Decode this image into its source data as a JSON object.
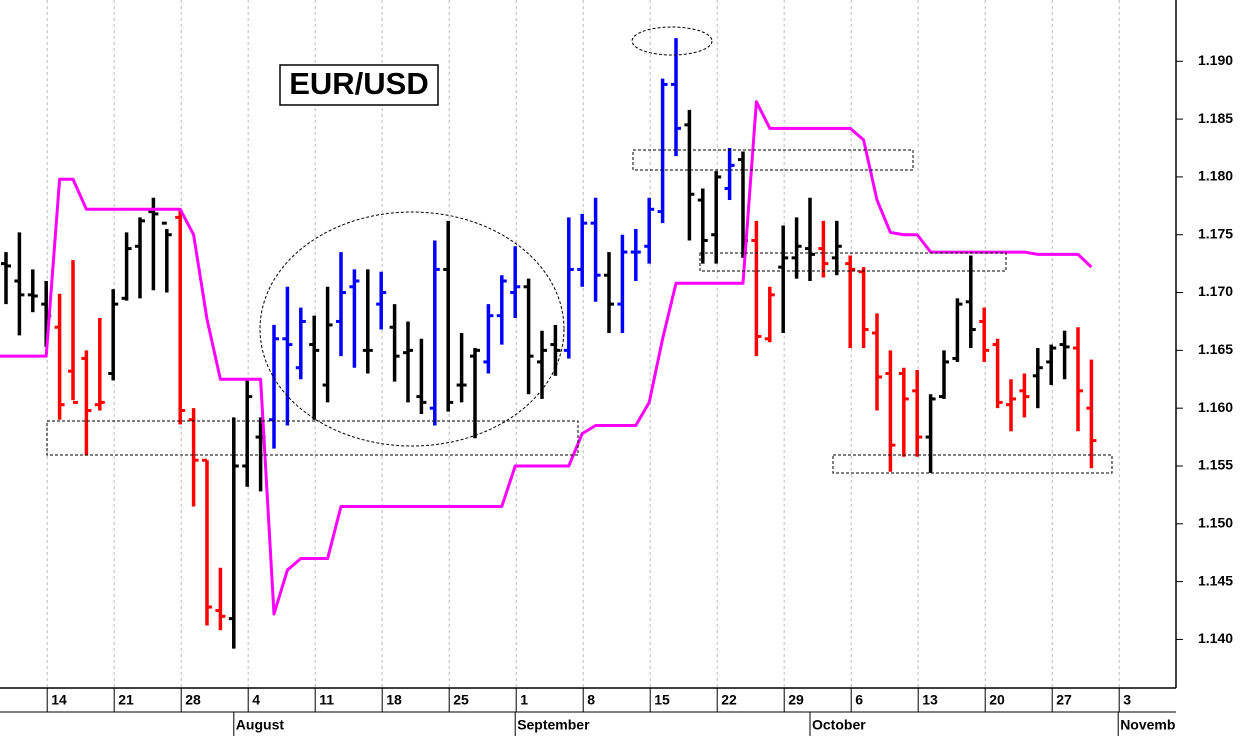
{
  "chart_data": {
    "type": "ohlc",
    "title": "EUR/USD",
    "categories": [
      null,
      null,
      null,
      "14",
      null,
      null,
      null,
      null,
      "21",
      null,
      null,
      null,
      null,
      "28",
      null,
      null,
      null,
      null,
      "4",
      null,
      null,
      null,
      null,
      "11",
      null,
      null,
      null,
      null,
      "18",
      null,
      null,
      null,
      null,
      "25",
      null,
      null,
      null,
      null,
      "1",
      null,
      null,
      null,
      null,
      "8",
      null,
      null,
      null,
      null,
      "15",
      null,
      null,
      null,
      null,
      "22",
      null,
      null,
      null,
      null,
      "29",
      null,
      null,
      null,
      null,
      "6",
      null,
      null,
      null,
      null,
      "13",
      null,
      null,
      null,
      null,
      "20",
      null,
      null,
      null,
      null,
      "27",
      null,
      null,
      null,
      null,
      "3"
    ],
    "month_labels": [
      null,
      null,
      null,
      null,
      null,
      null,
      null,
      null,
      null,
      null,
      null,
      null,
      null,
      null,
      null,
      null,
      null,
      "August",
      null,
      null,
      null,
      null,
      null,
      null,
      null,
      null,
      null,
      null,
      null,
      null,
      null,
      null,
      null,
      null,
      null,
      null,
      null,
      null,
      "September",
      null,
      null,
      null,
      null,
      null,
      null,
      null,
      null,
      null,
      null,
      null,
      null,
      null,
      null,
      null,
      null,
      null,
      null,
      null,
      null,
      null,
      "October",
      null,
      null,
      null,
      null,
      null,
      null,
      null,
      null,
      null,
      null,
      null,
      null,
      null,
      null,
      null,
      null,
      null,
      null,
      null,
      null,
      null,
      null,
      "November"
    ],
    "series": [
      {
        "open": [
          1.1725,
          1.171,
          1.1698,
          1.169,
          1.167,
          1.1632,
          1.1643,
          1.1603,
          1.163,
          1.1695,
          1.174,
          1.177,
          1.176,
          1.1765,
          1.159,
          1.1555,
          1.1425,
          1.1418,
          1.155,
          1.1575,
          1.159,
          1.166,
          1.1635,
          1.1655,
          1.162,
          1.1675,
          1.1705,
          1.165,
          1.169,
          1.167,
          1.1648,
          1.161,
          1.16,
          1.172,
          1.162,
          1.1645,
          1.164,
          1.168,
          1.17,
          1.1705,
          1.164,
          1.1655,
          1.165,
          1.172,
          1.176,
          1.1715,
          1.169,
          1.1735,
          1.174,
          1.177,
          1.188,
          1.1845,
          1.178,
          1.175,
          1.179,
          1.1815,
          1.1745,
          1.166,
          1.1722,
          1.173,
          1.1738,
          1.1738,
          1.173,
          1.1725,
          1.1718,
          1.1665,
          1.163,
          1.163,
          1.1615,
          1.1575,
          1.161,
          1.1643,
          1.1692,
          1.1675,
          1.1655,
          1.1603,
          1.1615,
          1.1628,
          1.164,
          1.1655,
          1.1652,
          1.16,
          null,
          null
        ],
        "high": [
          1.1735,
          1.1752,
          1.172,
          1.171,
          1.1699,
          1.1728,
          1.165,
          1.1678,
          1.1703,
          1.1752,
          1.1765,
          1.1782,
          1.1755,
          1.1772,
          1.16,
          1.1555,
          1.1462,
          1.1592,
          1.1625,
          1.1592,
          1.1672,
          1.1705,
          1.1687,
          1.168,
          1.1705,
          1.1735,
          1.172,
          1.172,
          1.1718,
          1.169,
          1.1675,
          1.166,
          1.1745,
          1.1762,
          1.1665,
          1.1652,
          1.169,
          1.1715,
          1.174,
          1.1712,
          1.1667,
          1.1672,
          1.1765,
          1.1768,
          1.1782,
          1.1735,
          1.175,
          1.1755,
          1.1782,
          1.1885,
          1.192,
          1.1858,
          1.179,
          1.1805,
          1.1825,
          1.1822,
          1.1762,
          1.1705,
          1.1758,
          1.1765,
          1.1782,
          1.1762,
          1.1762,
          1.1732,
          1.1722,
          1.1682,
          1.165,
          1.1635,
          1.1633,
          1.1612,
          1.165,
          1.1695,
          1.1732,
          1.1687,
          1.166,
          1.1625,
          1.163,
          1.1652,
          1.1655,
          1.1667,
          1.167,
          1.1642,
          null,
          null
        ],
        "low": [
          1.169,
          1.1663,
          1.1683,
          1.1653,
          1.159,
          1.1607,
          1.1559,
          1.1598,
          1.1624,
          1.1693,
          1.1695,
          1.1702,
          1.17,
          1.1586,
          1.1515,
          1.1412,
          1.1408,
          1.1392,
          1.1532,
          1.1528,
          1.1565,
          1.1585,
          1.1625,
          1.159,
          1.1605,
          1.1645,
          1.1635,
          1.163,
          1.1668,
          1.1623,
          1.1605,
          1.1595,
          1.1585,
          1.1597,
          1.1605,
          1.1574,
          1.163,
          1.1655,
          1.1678,
          1.1612,
          1.1608,
          1.1628,
          1.1643,
          1.1705,
          1.1692,
          1.1665,
          1.1665,
          1.171,
          1.1725,
          1.176,
          1.1818,
          1.1745,
          1.1725,
          1.1725,
          1.178,
          1.173,
          1.1645,
          1.1657,
          1.1665,
          1.1712,
          1.171,
          1.1713,
          1.1715,
          1.1652,
          1.1652,
          1.1598,
          1.1545,
          1.1558,
          1.1558,
          1.1544,
          1.1608,
          1.164,
          1.1652,
          1.164,
          1.16,
          1.158,
          1.1592,
          1.16,
          1.162,
          1.1625,
          1.158,
          1.1548,
          null,
          null
        ],
        "close": [
          1.1723,
          1.1698,
          1.1697,
          1.168,
          1.1603,
          1.1605,
          1.1598,
          1.1605,
          1.169,
          1.1738,
          1.1762,
          1.1768,
          1.175,
          1.1598,
          1.1555,
          1.1428,
          1.142,
          1.155,
          1.161,
          1.1575,
          1.166,
          1.1655,
          1.1675,
          1.165,
          1.1672,
          1.17,
          1.171,
          1.165,
          1.17,
          1.1645,
          1.165,
          1.1605,
          1.172,
          1.1605,
          1.162,
          1.165,
          1.168,
          1.171,
          1.1705,
          1.1645,
          1.165,
          1.165,
          1.172,
          1.176,
          1.1715,
          1.169,
          1.1735,
          1.1735,
          1.1772,
          1.188,
          1.1842,
          1.1785,
          1.1745,
          1.18,
          1.181,
          1.1745,
          1.1662,
          1.1698,
          1.173,
          1.174,
          1.1733,
          1.1725,
          1.174,
          1.172,
          1.1668,
          1.1627,
          1.1568,
          1.1608,
          1.1575,
          1.1608,
          1.164,
          1.169,
          1.1668,
          1.165,
          1.1605,
          1.1608,
          1.161,
          1.1635,
          1.1652,
          1.1653,
          1.1615,
          1.1572,
          null,
          null
        ],
        "colors": [
          "#000000",
          "#000000",
          "#000000",
          "#000000",
          "#ff0000",
          "#ff0000",
          "#ff0000",
          "#ff0000",
          "#000000",
          "#000000",
          "#000000",
          "#000000",
          "#000000",
          "#ff0000",
          "#ff0000",
          "#ff0000",
          "#ff0000",
          "#000000",
          "#000000",
          "#000000",
          "#0000ff",
          "#0000ff",
          "#0000ff",
          "#000000",
          "#000000",
          "#0000ff",
          "#0000ff",
          "#000000",
          "#0000ff",
          "#000000",
          "#000000",
          "#000000",
          "#0000ff",
          "#000000",
          "#000000",
          "#000000",
          "#0000ff",
          "#0000ff",
          "#0000ff",
          "#000000",
          "#000000",
          "#000000",
          "#0000ff",
          "#0000ff",
          "#0000ff",
          "#000000",
          "#0000ff",
          "#0000ff",
          "#0000ff",
          "#0000ff",
          "#0000ff",
          "#000000",
          "#000000",
          "#000000",
          "#0000ff",
          "#000000",
          "#ff0000",
          "#ff0000",
          "#000000",
          "#000000",
          "#000000",
          "#ff0000",
          "#000000",
          "#ff0000",
          "#ff0000",
          "#ff0000",
          "#ff0000",
          "#ff0000",
          "#ff0000",
          "#000000",
          "#000000",
          "#000000",
          "#000000",
          "#ff0000",
          "#ff0000",
          "#ff0000",
          "#ff0000",
          "#000000",
          "#000000",
          "#000000",
          "#ff0000",
          "#ff0000",
          null,
          null
        ]
      },
      {
        "type": "line",
        "color": "#ff00ff",
        "values": [
          1.1645,
          1.1645,
          1.1645,
          1.1645,
          1.1798,
          1.1798,
          1.1772,
          1.1772,
          1.1772,
          1.1772,
          1.1772,
          1.1772,
          1.1772,
          1.1772,
          1.175,
          1.1677,
          1.1625,
          1.1625,
          1.1625,
          1.1625,
          1.1422,
          1.146,
          1.147,
          1.147,
          1.147,
          1.1515,
          1.1515,
          1.1515,
          1.1515,
          1.1515,
          1.1515,
          1.1515,
          1.1515,
          1.1515,
          1.1515,
          1.1515,
          1.1515,
          1.1515,
          1.155,
          1.155,
          1.155,
          1.155,
          1.155,
          1.1578,
          1.1585,
          1.1585,
          1.1585,
          1.1585,
          1.1605,
          1.166,
          1.1708,
          1.1708,
          1.1708,
          1.1708,
          1.1708,
          1.1708,
          1.1865,
          1.1842,
          1.1842,
          1.1842,
          1.1842,
          1.1842,
          1.1842,
          1.1842,
          1.1832,
          1.178,
          1.1752,
          1.175,
          1.175,
          1.1735,
          1.1735,
          1.1735,
          1.1735,
          1.1735,
          1.1735,
          1.1735,
          1.1735,
          1.1733,
          1.1733,
          1.1733,
          1.1733,
          1.1722,
          null,
          null
        ]
      }
    ],
    "ylim": [
      1.1358,
      1.1953
    ],
    "yticks": [
      {
        "value": 1.14,
        "label": "1.140"
      },
      1.145,
      {
        "value": 1.15,
        "label": "1.150"
      },
      1.155,
      {
        "value": 1.16,
        "label": "1.160"
      },
      1.165,
      {
        "value": 1.17,
        "label": "1.170"
      },
      1.175,
      {
        "value": 1.18,
        "label": "1.180"
      },
      1.185,
      {
        "value": 1.19,
        "label": "1.190"
      }
    ],
    "grid": true
  }
}
